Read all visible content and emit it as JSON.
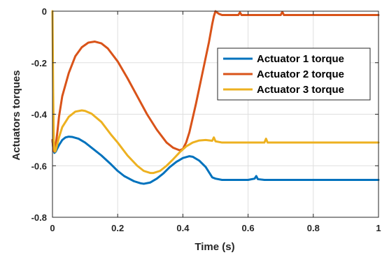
{
  "chart_data": {
    "type": "line",
    "title": "",
    "xlabel": "Time (s)",
    "ylabel": "Actuators torques",
    "xlim": [
      0,
      1
    ],
    "ylim": [
      -0.8,
      0
    ],
    "xticks": [
      0,
      0.2,
      0.4,
      0.6,
      0.8,
      1
    ],
    "xtick_labels": [
      "0",
      "0.2",
      "0.4",
      "0.6",
      "0.8",
      "1"
    ],
    "yticks": [
      -0.8,
      -0.6,
      -0.4,
      -0.2,
      0
    ],
    "ytick_labels": [
      "-0.8",
      "-0.6",
      "-0.4",
      "-0.2",
      "0"
    ],
    "grid": true,
    "legend_position": "top-right",
    "series": [
      {
        "name": "Actuator 1 torque",
        "color": "#0072BD",
        "x": [
          0,
          0.003,
          0.006,
          0.01,
          0.02,
          0.03,
          0.04,
          0.05,
          0.06,
          0.08,
          0.1,
          0.12,
          0.15,
          0.18,
          0.2,
          0.22,
          0.25,
          0.27,
          0.28,
          0.3,
          0.32,
          0.34,
          0.36,
          0.38,
          0.4,
          0.42,
          0.43,
          0.45,
          0.47,
          0.48,
          0.49,
          0.5,
          0.52,
          0.55,
          0.6,
          0.62,
          0.625,
          0.63,
          0.65,
          0.7,
          0.8,
          0.9,
          1.0
        ],
        "y": [
          -0.5,
          -0.54,
          -0.55,
          -0.545,
          -0.52,
          -0.5,
          -0.49,
          -0.487,
          -0.488,
          -0.495,
          -0.51,
          -0.53,
          -0.56,
          -0.595,
          -0.62,
          -0.64,
          -0.66,
          -0.668,
          -0.67,
          -0.665,
          -0.65,
          -0.63,
          -0.605,
          -0.585,
          -0.57,
          -0.563,
          -0.565,
          -0.58,
          -0.605,
          -0.625,
          -0.645,
          -0.65,
          -0.655,
          -0.655,
          -0.655,
          -0.65,
          -0.64,
          -0.652,
          -0.655,
          -0.655,
          -0.655,
          -0.655,
          -0.655
        ]
      },
      {
        "name": "Actuator 2 torque",
        "color": "#D95319",
        "x": [
          0,
          0.003,
          0.006,
          0.01,
          0.015,
          0.02,
          0.03,
          0.05,
          0.07,
          0.09,
          0.11,
          0.13,
          0.15,
          0.17,
          0.2,
          0.23,
          0.26,
          0.29,
          0.32,
          0.35,
          0.37,
          0.39,
          0.4,
          0.41,
          0.42,
          0.44,
          0.46,
          0.48,
          0.49,
          0.495,
          0.5,
          0.51,
          0.52,
          0.55,
          0.57,
          0.575,
          0.58,
          0.6,
          0.65,
          0.7,
          0.705,
          0.71,
          0.75,
          0.8,
          0.9,
          1.0
        ],
        "y": [
          -0.5,
          -0.54,
          -0.545,
          -0.52,
          -0.47,
          -0.41,
          -0.33,
          -0.24,
          -0.175,
          -0.14,
          -0.122,
          -0.118,
          -0.125,
          -0.145,
          -0.195,
          -0.26,
          -0.33,
          -0.4,
          -0.46,
          -0.51,
          -0.53,
          -0.54,
          -0.535,
          -0.51,
          -0.47,
          -0.36,
          -0.24,
          -0.12,
          -0.05,
          -0.02,
          0.0,
          -0.01,
          -0.015,
          -0.015,
          -0.015,
          -0.005,
          -0.015,
          -0.015,
          -0.015,
          -0.015,
          -0.003,
          -0.015,
          -0.015,
          -0.015,
          -0.015,
          -0.015
        ]
      },
      {
        "name": "Actuator 3 torque",
        "color": "#EDB120",
        "x": [
          0,
          0.002,
          0.004,
          0.006,
          0.008,
          0.01,
          0.015,
          0.02,
          0.03,
          0.05,
          0.07,
          0.09,
          0.1,
          0.12,
          0.15,
          0.18,
          0.2,
          0.23,
          0.26,
          0.28,
          0.3,
          0.31,
          0.33,
          0.35,
          0.37,
          0.39,
          0.41,
          0.43,
          0.45,
          0.47,
          0.49,
          0.495,
          0.5,
          0.52,
          0.55,
          0.58,
          0.6,
          0.65,
          0.655,
          0.66,
          0.7,
          0.8,
          0.9,
          1.0
        ],
        "y": [
          0.0,
          -0.3,
          -0.5,
          -0.54,
          -0.545,
          -0.54,
          -0.515,
          -0.49,
          -0.45,
          -0.41,
          -0.39,
          -0.385,
          -0.387,
          -0.398,
          -0.43,
          -0.48,
          -0.51,
          -0.56,
          -0.6,
          -0.62,
          -0.628,
          -0.628,
          -0.62,
          -0.6,
          -0.575,
          -0.548,
          -0.525,
          -0.51,
          -0.502,
          -0.5,
          -0.503,
          -0.49,
          -0.505,
          -0.51,
          -0.51,
          -0.51,
          -0.51,
          -0.51,
          -0.495,
          -0.51,
          -0.51,
          -0.51,
          -0.51,
          -0.51
        ]
      }
    ]
  }
}
